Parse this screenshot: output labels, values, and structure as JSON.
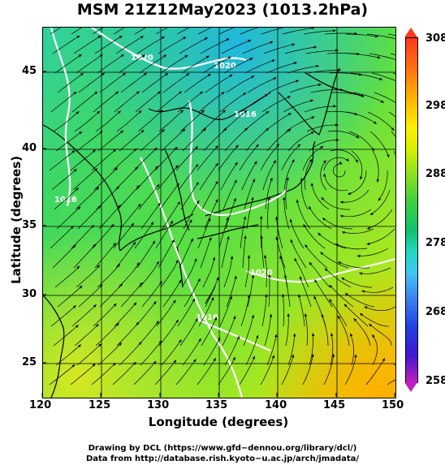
{
  "title": "MSM 21Z12May2023 (1013.2hPa)",
  "x_axis": {
    "label": "Longitude (degrees)",
    "ticks": [
      "120",
      "125",
      "130",
      "135",
      "140",
      "145",
      "150"
    ],
    "range": [
      120,
      150
    ]
  },
  "y_axis": {
    "label": "Latitude  (degrees)",
    "ticks": [
      "25",
      "30",
      "35",
      "40",
      "45"
    ],
    "range": [
      23,
      48
    ]
  },
  "colorbar": {
    "ticks": [
      "308",
      "298",
      "288",
      "278",
      "268",
      "258"
    ],
    "colors": {
      "high": "#ff3a1a",
      "mid": "#3ad040",
      "low": "#c020c0"
    }
  },
  "isobar_labels": [
    "1020",
    "1016",
    "1020",
    "1016",
    "1020",
    "1016"
  ],
  "credits": {
    "line1": "Drawing by DCL (https://www.gfd−dennou.org/library/dcl/)",
    "line2": "Data from http://database.rish.kyoto−u.ac.jp/arch/jmadata/"
  }
}
